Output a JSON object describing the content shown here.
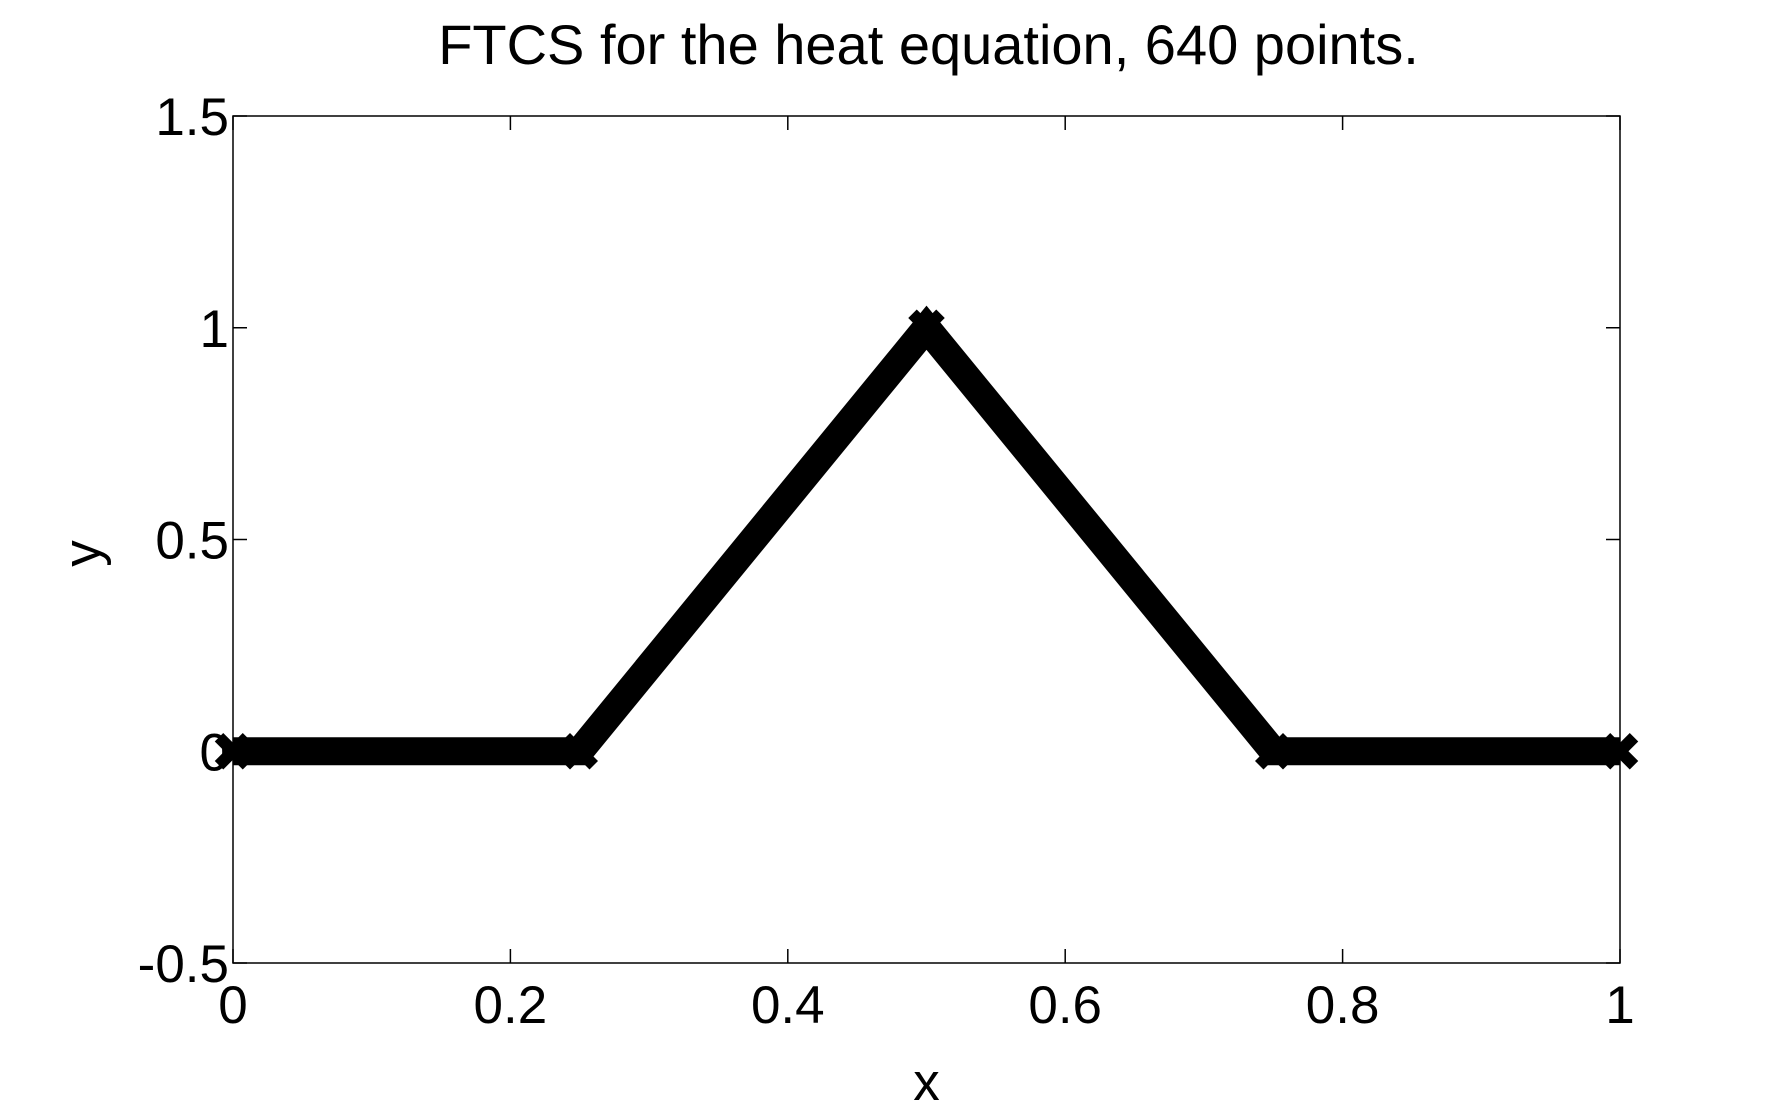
{
  "chart_data": {
    "type": "line",
    "title": "FTCS for the heat equation, 640 points.",
    "xlabel": "x",
    "ylabel": "y",
    "xlim": [
      0,
      1
    ],
    "ylim": [
      -0.5,
      1.5
    ],
    "xticks": [
      0,
      0.2,
      0.4,
      0.6,
      0.8,
      1
    ],
    "xtick_labels": [
      "0",
      "0.2",
      "0.4",
      "0.6",
      "0.8",
      "1"
    ],
    "yticks": [
      -0.5,
      0,
      0.5,
      1,
      1.5
    ],
    "ytick_labels": [
      "-0.5",
      "0",
      "0.5",
      "1",
      "1.5"
    ],
    "grid": false,
    "legend": "none",
    "series": [
      {
        "color": "#000000",
        "marker": "x",
        "x": [
          0,
          0.25,
          0.5,
          0.75,
          1
        ],
        "y": [
          0,
          0,
          1,
          0,
          0
        ]
      }
    ]
  }
}
